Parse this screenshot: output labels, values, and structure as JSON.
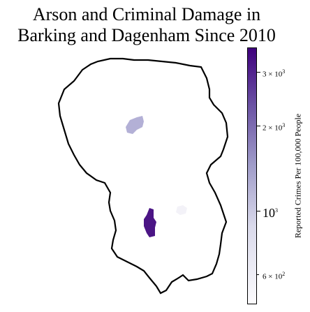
{
  "title": "Arson and Criminal Damage in Barking and Dagenham Since 2010",
  "title_line1": "Arson and Criminal Damage in",
  "title_line2": "Barking and Dagenham Since 2010",
  "colorbar": {
    "label": "Reported Crimes Per 100,000 People",
    "scale": "log",
    "colormap": "Purples",
    "ticks": [
      {
        "value": 600,
        "label_base": "6 × 10",
        "label_exp": "2"
      },
      {
        "value": 1000,
        "label_base": "10",
        "label_exp": "3"
      },
      {
        "value": 2000,
        "label_base": "2 × 10",
        "label_exp": "3"
      },
      {
        "value": 3000,
        "label_base": "3 × 10",
        "label_exp": "3"
      }
    ]
  },
  "chart_data": {
    "type": "heatmap",
    "title": "Arson and Criminal Damage in Barking and Dagenham Since 2010",
    "colorbar_label": "Reported Crimes Per 100,000 People",
    "colorbar_range": [
      500,
      3700
    ],
    "scale": "log",
    "regions": [
      {
        "label": "",
        "value": 1800,
        "color": "#b3b0d6"
      },
      {
        "label": "",
        "value": 3600,
        "color": "#4b1585"
      },
      {
        "label": "",
        "value": 550,
        "color": "#f3f2f8"
      }
    ]
  }
}
